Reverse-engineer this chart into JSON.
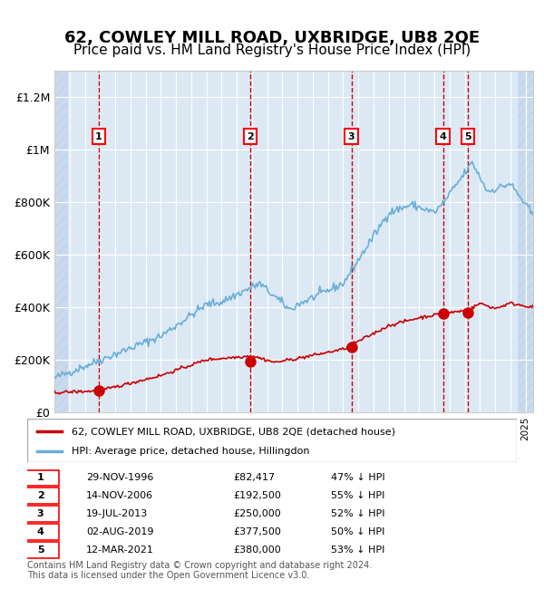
{
  "title": "62, COWLEY MILL ROAD, UXBRIDGE, UB8 2QE",
  "subtitle": "Price paid vs. HM Land Registry's House Price Index (HPI)",
  "title_fontsize": 13,
  "subtitle_fontsize": 11,
  "xlabel": "",
  "ylabel": "",
  "ylim": [
    0,
    1300000
  ],
  "xlim_start": 1994.0,
  "xlim_end": 2025.5,
  "background_color": "#dce9f5",
  "hatch_color": "#b0c4de",
  "grid_color": "#ffffff",
  "sale_color": "#cc0000",
  "hpi_color": "#6baed6",
  "sale_marker_color": "#cc0000",
  "dashed_line_color": "#cc0000",
  "legend_label_sale": "62, COWLEY MILL ROAD, UXBRIDGE, UB8 2QE (detached house)",
  "legend_label_hpi": "HPI: Average price, detached house, Hillingdon",
  "footer": "Contains HM Land Registry data © Crown copyright and database right 2024.\nThis data is licensed under the Open Government Licence v3.0.",
  "sales": [
    {
      "num": 1,
      "date_x": 1996.91,
      "price": 82417
    },
    {
      "num": 2,
      "date_x": 2006.87,
      "price": 192500
    },
    {
      "num": 3,
      "date_x": 2013.54,
      "price": 250000
    },
    {
      "num": 4,
      "date_x": 2019.58,
      "price": 377500
    },
    {
      "num": 5,
      "date_x": 2021.19,
      "price": 380000
    }
  ],
  "yticks": [
    0,
    200000,
    400000,
    600000,
    800000,
    1000000,
    1200000
  ],
  "ytick_labels": [
    "£0",
    "£200K",
    "£400K",
    "£600K",
    "£800K",
    "£1M",
    "£1.2M"
  ]
}
